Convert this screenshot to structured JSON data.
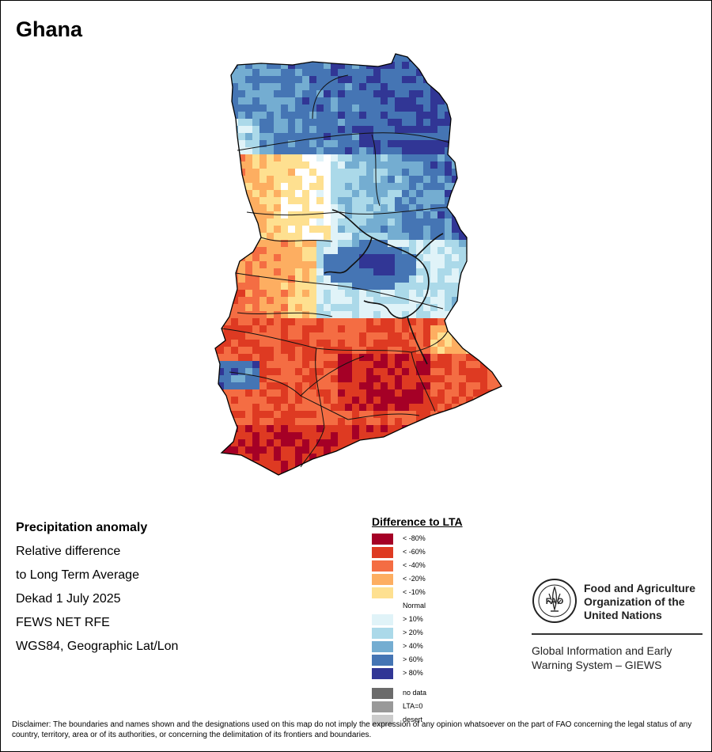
{
  "map": {
    "title": "Ghana",
    "info_lines": [
      "Precipitation anomaly",
      "Relative difference",
      "to Long Term Average",
      "Dekad 1 July 2025",
      "FEWS NET RFE",
      "WGS84, Geographic Lat/Lon"
    ]
  },
  "legend": {
    "title": "Difference to LTA",
    "items": [
      {
        "label": "< -80%",
        "color": "#a50026"
      },
      {
        "label": "< -60%",
        "color": "#de3a22"
      },
      {
        "label": "< -40%",
        "color": "#f46d43"
      },
      {
        "label": "< -20%",
        "color": "#fdae61"
      },
      {
        "label": "< -10%",
        "color": "#fee090"
      },
      {
        "label": "Normal",
        "color": "#ffffff"
      },
      {
        "label": "> 10%",
        "color": "#e0f3f8"
      },
      {
        "label": "> 20%",
        "color": "#abd9e9"
      },
      {
        "label": "> 40%",
        "color": "#74add1"
      },
      {
        "label": "> 60%",
        "color": "#4575b4"
      },
      {
        "label": "> 80%",
        "color": "#313695"
      },
      {
        "label": "no data",
        "color": "#6b6b6b"
      },
      {
        "label": "LTA=0",
        "color": "#999999"
      },
      {
        "label": "desert",
        "color": "#cccccc"
      }
    ]
  },
  "organization": {
    "name": "Food and Agriculture Organization of the United Nations",
    "logo_text": "FAO",
    "system": "Global Information and Early Warning System – GIEWS"
  },
  "disclaimer": "Disclaimer: The boundaries and names shown and the designations used on this map do not imply the expression of any opinion whatsoever on the part of FAO concerning the legal status of any country, territory, area or of its authorities, or concerning the delimitation of its frontiers and boundaries."
}
